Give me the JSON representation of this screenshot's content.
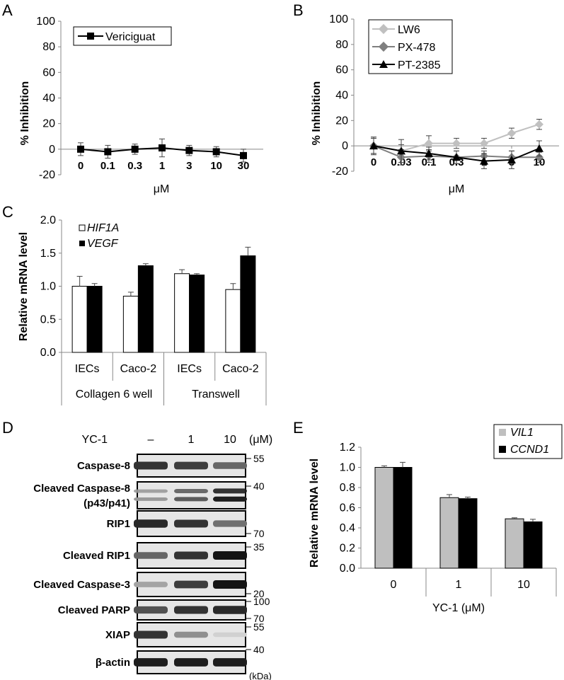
{
  "panels": {
    "A": {
      "label": "A",
      "chart_data": {
        "type": "line",
        "title": "",
        "xlabel": "μM",
        "ylabel": "% Inhibition",
        "ylim": [
          -20,
          100
        ],
        "yticks": [
          -20,
          0,
          20,
          40,
          60,
          80,
          100
        ],
        "categories": [
          "0",
          "0.1",
          "0.3",
          "1",
          "3",
          "10",
          "30"
        ],
        "legend_position": "top-left",
        "series": [
          {
            "name": "Vericiguat",
            "color": "#000000",
            "marker": "square",
            "values": [
              0,
              -2,
              0,
              1,
              -1,
              -2,
              -5
            ],
            "errors": [
              5,
              5,
              4,
              7,
              4,
              4,
              5
            ]
          }
        ]
      }
    },
    "B": {
      "label": "B",
      "chart_data": {
        "type": "line",
        "title": "",
        "xlabel": "μM",
        "ylabel": "% Inhibition",
        "ylim": [
          -20,
          100
        ],
        "yticks": [
          -20,
          0,
          20,
          40,
          60,
          80,
          100
        ],
        "categories": [
          "0",
          "0.03",
          "0.1",
          "0.3",
          "1",
          "3",
          "10"
        ],
        "legend_position": "top-left",
        "series": [
          {
            "name": "LW6",
            "color": "#c0c0c0",
            "marker": "diamond",
            "values": [
              0,
              -4,
              2,
              2,
              2,
              10,
              17
            ],
            "errors": [
              6,
              5,
              6,
              4,
              4,
              4,
              4
            ]
          },
          {
            "name": "PX-478",
            "color": "#7f7f7f",
            "marker": "diamond",
            "values": [
              0,
              -9,
              -8,
              -9,
              -8,
              -9,
              -9
            ],
            "errors": [
              6,
              6,
              5,
              5,
              4,
              5,
              4
            ]
          },
          {
            "name": "PT-2385",
            "color": "#000000",
            "marker": "triangle",
            "values": [
              0,
              -4,
              -6,
              -9,
              -12,
              -11,
              -2
            ],
            "errors": [
              7,
              9,
              5,
              5,
              6,
              7,
              6
            ]
          }
        ]
      }
    },
    "C": {
      "label": "C",
      "chart_data": {
        "type": "bar",
        "title": "",
        "xlabel": "",
        "ylabel": "Relative mRNA level",
        "ylim": [
          0.0,
          2.0
        ],
        "yticks": [
          "0.0",
          "0.5",
          "1.0",
          "1.5",
          "2.0"
        ],
        "categories": [
          "IECs",
          "Caco-2",
          "IECs",
          "Caco-2"
        ],
        "groups": [
          "Collagen 6 well",
          "Transwell"
        ],
        "legend_position": "top-left",
        "series": [
          {
            "name": "HIF1A",
            "color": "#ffffff",
            "values": [
              1.0,
              0.85,
              1.19,
              0.95
            ],
            "errors": [
              0.15,
              0.06,
              0.06,
              0.09
            ]
          },
          {
            "name": "VEGF",
            "color": "#000000",
            "values": [
              1.0,
              1.31,
              1.17,
              1.46
            ],
            "errors": [
              0.04,
              0.03,
              0.02,
              0.13
            ]
          }
        ]
      }
    },
    "D": {
      "label": "D",
      "treatment_label": "YC-1",
      "doses": [
        "–",
        "1",
        "10"
      ],
      "dose_unit": "(μM)",
      "kda_unit": "(kDa)",
      "blots": [
        {
          "name": "Caspase-8",
          "markers": [
            "55"
          ],
          "intensities": [
            0.85,
            0.8,
            0.6
          ]
        },
        {
          "name": "Cleaved Caspase-8",
          "sub": "(p43/p41)",
          "markers": [
            "40"
          ],
          "intensities": [
            0.35,
            0.65,
            0.95
          ]
        },
        {
          "name": "RIP1",
          "markers": [
            "70"
          ],
          "intensities": [
            0.9,
            0.85,
            0.55
          ]
        },
        {
          "name": "Cleaved RIP1",
          "markers": [
            "35"
          ],
          "intensities": [
            0.6,
            0.85,
            1.0
          ]
        },
        {
          "name": "Cleaved Caspase-3",
          "markers": [
            "20"
          ],
          "intensities": [
            0.3,
            0.8,
            1.0
          ]
        },
        {
          "name": "Cleaved PARP",
          "markers": [
            "100",
            "70"
          ],
          "intensities": [
            0.7,
            0.85,
            0.9
          ]
        },
        {
          "name": "XIAP",
          "markers": [
            "55"
          ],
          "intensities": [
            0.85,
            0.4,
            0.08
          ]
        },
        {
          "name": "β-actin",
          "markers": [
            "40"
          ],
          "intensities": [
            0.95,
            0.95,
            0.95
          ]
        }
      ]
    },
    "E": {
      "label": "E",
      "chart_data": {
        "type": "bar",
        "title": "",
        "xlabel": "YC-1 (μM)",
        "ylabel": "Relative mRNA level",
        "ylim": [
          0.0,
          1.2
        ],
        "yticks": [
          "0.0",
          "0.2",
          "0.4",
          "0.6",
          "0.8",
          "1.0",
          "1.2"
        ],
        "categories": [
          "0",
          "1",
          "10"
        ],
        "legend_position": "top-right",
        "series": [
          {
            "name": "VIL1",
            "color": "#bfbfbf",
            "values": [
              1.0,
              0.7,
              0.49
            ],
            "errors": [
              0.015,
              0.03,
              0.01
            ]
          },
          {
            "name": "CCND1",
            "color": "#000000",
            "values": [
              1.0,
              0.69,
              0.46
            ],
            "errors": [
              0.05,
              0.015,
              0.025
            ]
          }
        ]
      }
    }
  }
}
